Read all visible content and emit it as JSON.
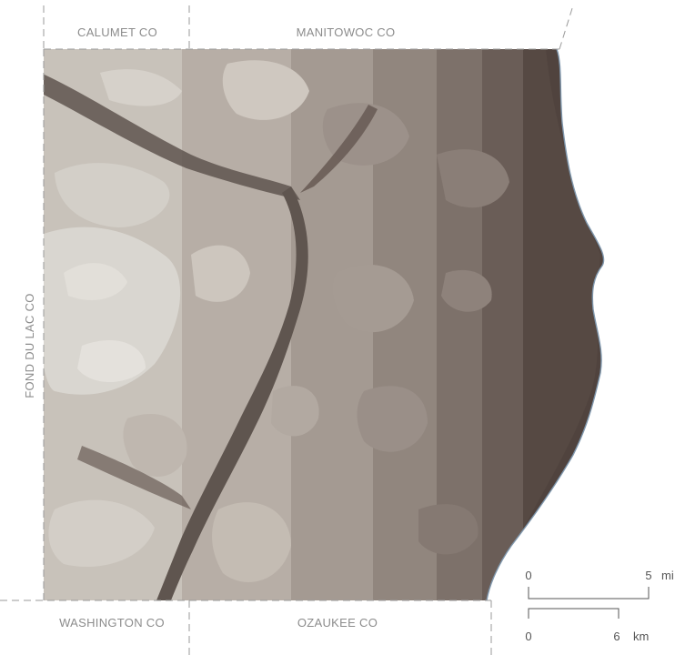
{
  "counties": {
    "north_left": "CALUMET CO",
    "north_right": "MANITOWOC CO",
    "west": "FOND DU LAC CO",
    "south_left": "WASHINGTON CO",
    "south_right": "OZAUKEE CO"
  },
  "scale_bar": {
    "miles": {
      "start": "0",
      "end": "5",
      "unit": "mi"
    },
    "kilometers": {
      "start": "0",
      "end": "6",
      "unit": "km"
    }
  },
  "colors": {
    "elevation_levels": [
      "#d9d6d0",
      "#c8c2ba",
      "#b7aea6",
      "#a49a92",
      "#91867e",
      "#7d716a",
      "#6a5d57",
      "#564943"
    ],
    "valley": "#5f554f",
    "shoreline": "#7f97ad",
    "county_line": "#9a9a9a",
    "label": "#8c8c8c"
  }
}
